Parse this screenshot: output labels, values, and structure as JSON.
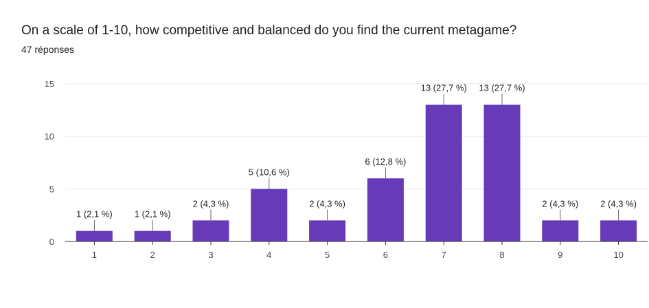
{
  "header": {
    "title": "On a scale of 1-10, how competitive and balanced do you find the current metagame?",
    "response_count": "47 réponses"
  },
  "colors": {
    "bar": "#673ab7",
    "grid": "#e6e6e6",
    "axis": "#333333",
    "leader": "#666666"
  },
  "chart_data": {
    "type": "bar",
    "categories": [
      "1",
      "2",
      "3",
      "4",
      "5",
      "6",
      "7",
      "8",
      "9",
      "10"
    ],
    "values": [
      1,
      1,
      2,
      5,
      2,
      6,
      13,
      13,
      2,
      2
    ],
    "data_labels": [
      "1 (2,1 %)",
      "1 (2,1 %)",
      "2 (4,3 %)",
      "5 (10,6 %)",
      "2 (4,3 %)",
      "6 (12,8 %)",
      "13 (27,7 %)",
      "13 (27,7 %)",
      "2 (4,3 %)",
      "2 (4,3 %)"
    ],
    "yticks": [
      0,
      5,
      10,
      15
    ],
    "ylim": [
      0,
      15
    ],
    "grid": true,
    "legend": "none"
  }
}
